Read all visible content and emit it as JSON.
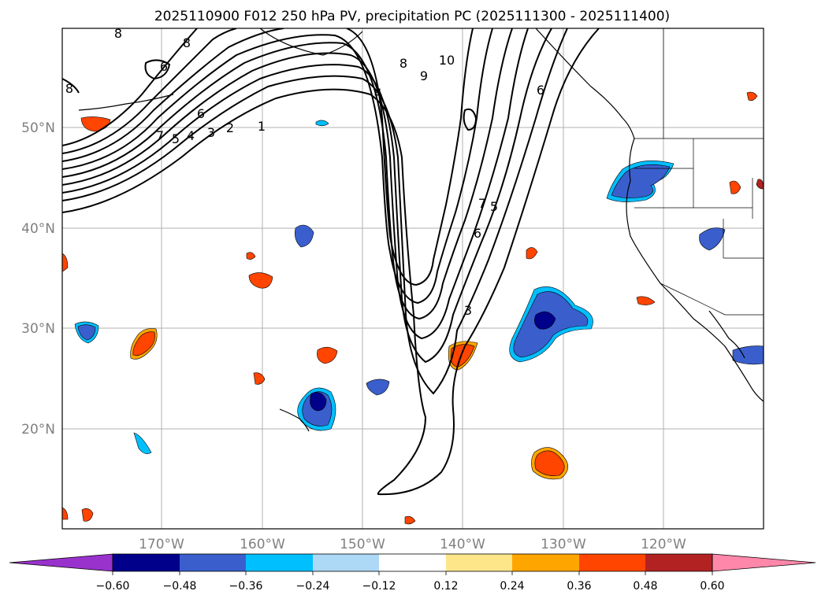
{
  "title": "2025110900 F012 250 hPa PV, precipitation PC (2025111300 - 2025111400)",
  "map": {
    "lat_ticks": [
      "50°N",
      "40°N",
      "30°N",
      "20°N"
    ],
    "lon_ticks": [
      "170°W",
      "160°W",
      "150°W",
      "140°W",
      "130°W",
      "120°W"
    ],
    "contour_labels": [
      "8",
      "8",
      "6",
      "8",
      "6",
      "7",
      "5",
      "4",
      "3",
      "2",
      "1",
      "4",
      "8",
      "9",
      "10",
      "6",
      "7",
      "5",
      "6",
      "3"
    ],
    "colors": {
      "land_border": "#000000",
      "grid": "#b0b0b0",
      "contour": "#000000"
    }
  },
  "colorbar": {
    "tick_labels": [
      "−0.60",
      "−0.48",
      "−0.36",
      "−0.24",
      "−0.12",
      "0.12",
      "0.24",
      "0.36",
      "0.48",
      "0.60"
    ],
    "under_color": "#9932cc",
    "over_color": "#ff88aa",
    "segment_colors": [
      "#00008b",
      "#3a5fcd",
      "#00bfff",
      "#add8f6",
      "#ffffff",
      "#fde68a",
      "#ffa500",
      "#ff4500",
      "#b22222"
    ]
  }
}
